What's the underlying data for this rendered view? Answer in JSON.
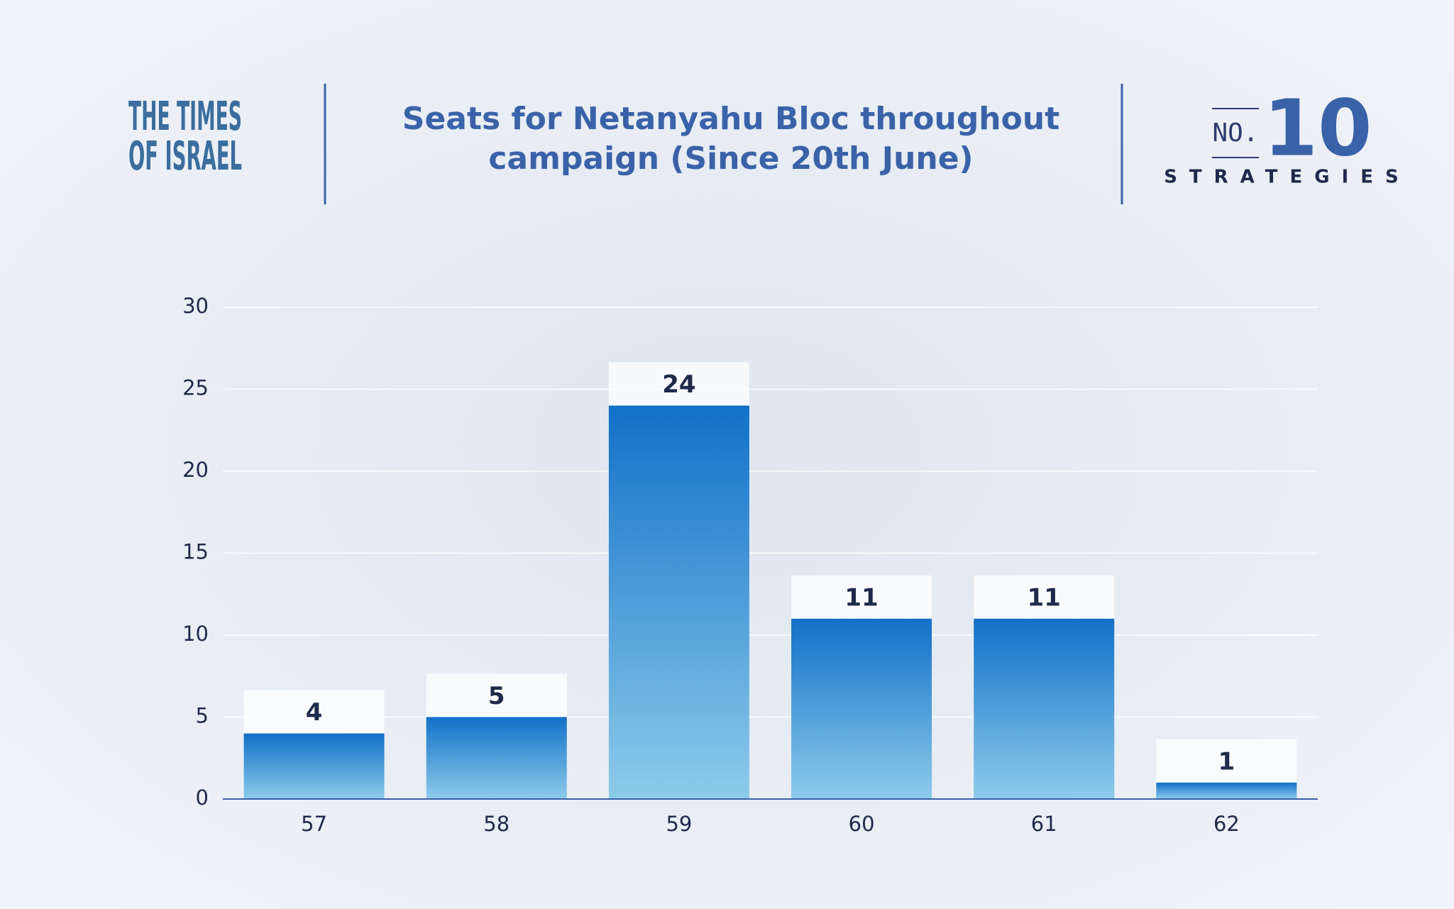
{
  "brand": {
    "line1": "THE TIMES",
    "line2": "OF ISRAEL"
  },
  "partner": {
    "prefix": "NO.",
    "number": "10",
    "name": "STRATEGIES"
  },
  "chart_data": {
    "type": "bar",
    "title": "Seats for Netanyahu Bloc throughout campaign (Since 20th June)",
    "categories": [
      "57",
      "58",
      "59",
      "60",
      "61",
      "62"
    ],
    "values": [
      4,
      5,
      24,
      11,
      11,
      1
    ],
    "color": "#1270c8",
    "ylim": [
      0,
      30
    ],
    "yticks": [
      0,
      5,
      10,
      15,
      20,
      25,
      30
    ],
    "grid": true
  }
}
